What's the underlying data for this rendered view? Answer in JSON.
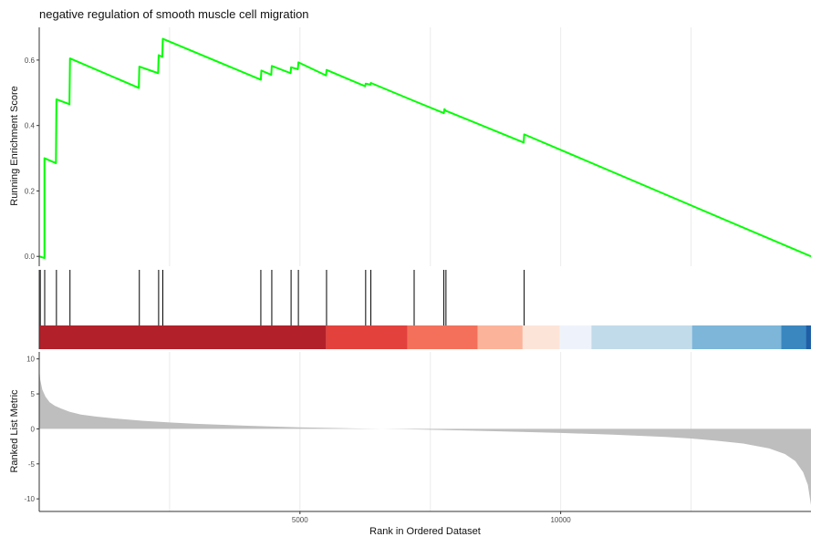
{
  "chart_data": {
    "type": "line",
    "title": "negative regulation of smooth muscle cell migration",
    "n_genes": 14800,
    "x_ticks": [
      5000,
      10000
    ],
    "x_tick_labels": [
      "5000",
      "10000"
    ],
    "xlabel": "Rank in Ordered Dataset",
    "grid": true,
    "panels": {
      "enrichment": {
        "ylabel": "Running Enrichment Score",
        "ylim": [
          -0.03,
          0.7
        ],
        "y_ticks": [
          0.0,
          0.2,
          0.4,
          0.6
        ],
        "y_tick_labels": [
          "0.0",
          "0.2",
          "0.4",
          "0.6"
        ],
        "line_color": "#00ff00",
        "points": [
          [
            0,
            0.0
          ],
          [
            100,
            -0.005
          ],
          [
            100,
            0.3
          ],
          [
            320,
            0.285
          ],
          [
            330,
            0.48
          ],
          [
            580,
            0.465
          ],
          [
            590,
            0.605
          ],
          [
            1910,
            0.515
          ],
          [
            1920,
            0.58
          ],
          [
            2280,
            0.56
          ],
          [
            2290,
            0.615
          ],
          [
            2360,
            0.61
          ],
          [
            2370,
            0.665
          ],
          [
            4250,
            0.54
          ],
          [
            4260,
            0.568
          ],
          [
            4450,
            0.555
          ],
          [
            4460,
            0.582
          ],
          [
            4820,
            0.56
          ],
          [
            4830,
            0.578
          ],
          [
            4960,
            0.572
          ],
          [
            4970,
            0.593
          ],
          [
            5500,
            0.553
          ],
          [
            5510,
            0.57
          ],
          [
            6250,
            0.52
          ],
          [
            6260,
            0.528
          ],
          [
            6350,
            0.525
          ],
          [
            6360,
            0.53
          ],
          [
            7190,
            0.475
          ],
          [
            7760,
            0.438
          ],
          [
            7770,
            0.45
          ],
          [
            7800,
            0.445
          ],
          [
            9290,
            0.348
          ],
          [
            9300,
            0.373
          ],
          [
            14800,
            0.0
          ]
        ]
      },
      "hits": [
        20,
        105,
        330,
        590,
        1920,
        2290,
        2370,
        4250,
        4460,
        4830,
        4970,
        5510,
        6260,
        6360,
        7190,
        7760,
        7800,
        9300
      ],
      "rank_bands": [
        {
          "start": 0,
          "end": 5500,
          "color": "#b2202a"
        },
        {
          "start": 5500,
          "end": 7060,
          "color": "#e3413c"
        },
        {
          "start": 7060,
          "end": 8410,
          "color": "#f4705a"
        },
        {
          "start": 8410,
          "end": 9270,
          "color": "#fbb39a"
        },
        {
          "start": 9270,
          "end": 9980,
          "color": "#fde4d8"
        },
        {
          "start": 9980,
          "end": 10590,
          "color": "#eef3fb"
        },
        {
          "start": 10590,
          "end": 12520,
          "color": "#c2dbea"
        },
        {
          "start": 12520,
          "end": 14230,
          "color": "#7db6d9"
        },
        {
          "start": 14230,
          "end": 14700,
          "color": "#3a87c0"
        },
        {
          "start": 14700,
          "end": 14800,
          "color": "#1d5fa5"
        }
      ],
      "ranked_metric": {
        "ylabel": "Ranked List Metric",
        "ylim": [
          -11.8,
          11.0
        ],
        "y_ticks": [
          10,
          5,
          0,
          -5,
          -10
        ],
        "y_tick_labels": [
          "10",
          "5",
          "0",
          "-5",
          "-10"
        ],
        "fill_color": "#bebebe",
        "profile": [
          [
            0,
            8.6
          ],
          [
            20,
            7.0
          ],
          [
            60,
            5.6
          ],
          [
            120,
            4.6
          ],
          [
            200,
            3.8
          ],
          [
            300,
            3.3
          ],
          [
            420,
            2.9
          ],
          [
            580,
            2.45
          ],
          [
            800,
            2.05
          ],
          [
            1100,
            1.75
          ],
          [
            1500,
            1.45
          ],
          [
            2000,
            1.15
          ],
          [
            2500,
            0.92
          ],
          [
            3000,
            0.72
          ],
          [
            4000,
            0.45
          ],
          [
            5000,
            0.22
          ],
          [
            6000,
            0.08
          ],
          [
            7000,
            -0.05
          ],
          [
            8000,
            -0.2
          ],
          [
            9000,
            -0.38
          ],
          [
            10000,
            -0.58
          ],
          [
            11000,
            -0.82
          ],
          [
            12000,
            -1.15
          ],
          [
            12500,
            -1.38
          ],
          [
            13000,
            -1.7
          ],
          [
            13500,
            -2.1
          ],
          [
            14000,
            -2.8
          ],
          [
            14300,
            -3.6
          ],
          [
            14500,
            -4.6
          ],
          [
            14650,
            -6.2
          ],
          [
            14740,
            -8.0
          ],
          [
            14800,
            -10.9
          ]
        ]
      }
    }
  }
}
